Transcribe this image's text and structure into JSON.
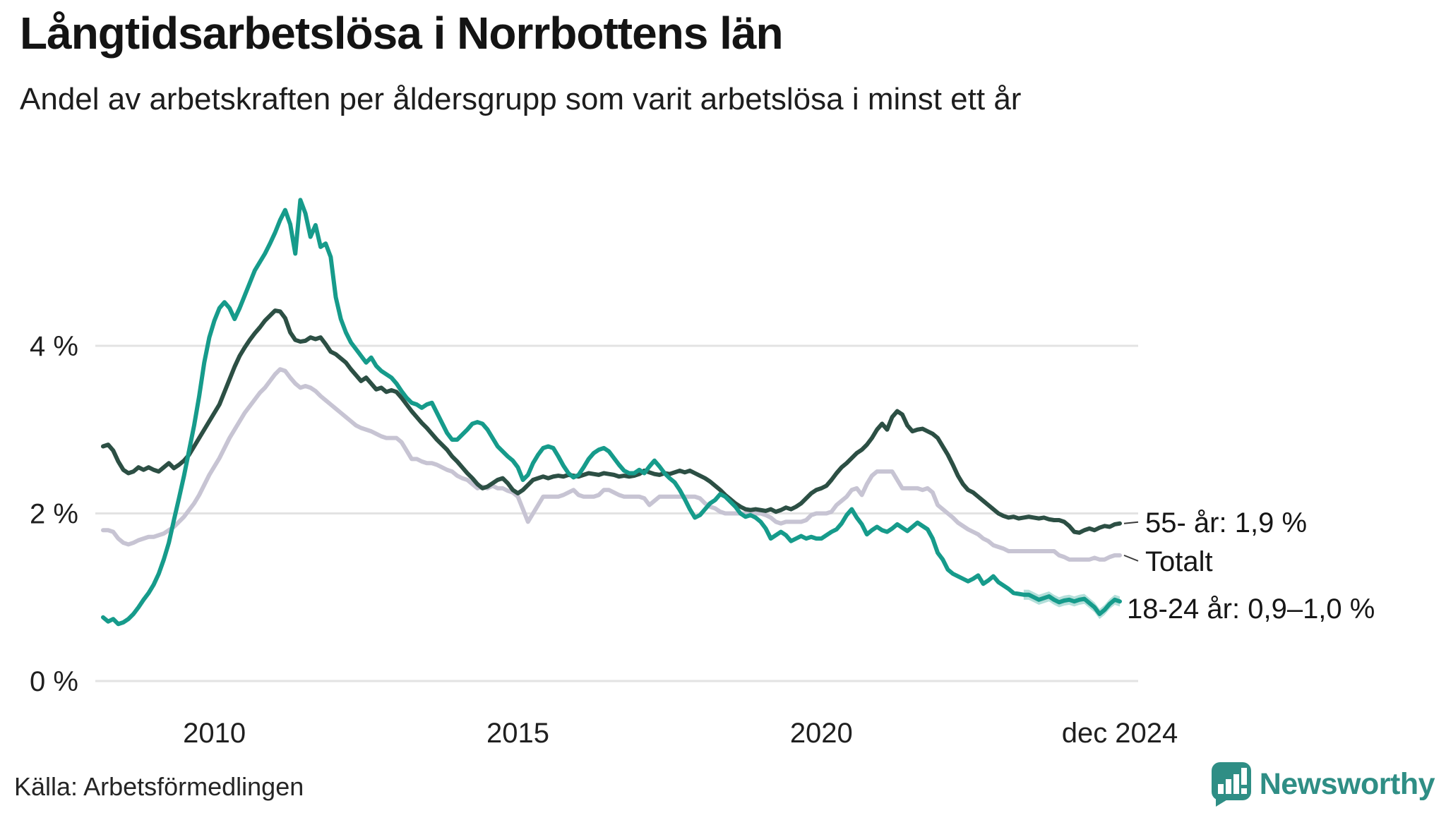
{
  "header": {
    "title": "Långtidsarbetslösa i Norrbottens län",
    "subtitle": "Andel av arbetskraften per åldersgrupp som varit arbetslösa i minst ett år"
  },
  "footer": {
    "source": "Källa: Arbetsförmedlingen",
    "brand": "Newsworthy",
    "brand_color": "#2f8e85"
  },
  "chart_data": {
    "type": "line",
    "title": "Långtidsarbetslösa i Norrbottens län",
    "subtitle": "Andel av arbetskraften per åldersgrupp som varit arbetslösa i minst ett år",
    "unit": "%",
    "x_start_month": "2008-03",
    "x_end_month": "2024-12",
    "x_ticks": [
      {
        "label": "2010",
        "month": "2010-01"
      },
      {
        "label": "2015",
        "month": "2015-01"
      },
      {
        "label": "2020",
        "month": "2020-01"
      },
      {
        "label": "dec 2024",
        "month": "2024-12"
      }
    ],
    "y_ticks": [
      {
        "label": "0 %",
        "value": 0
      },
      {
        "label": "2 %",
        "value": 2
      },
      {
        "label": "4 %",
        "value": 4
      }
    ],
    "ylim": [
      0,
      6.5
    ],
    "grid": true,
    "legend_position": "right-end-labels",
    "grid_color": "#e3e3e3",
    "series": [
      {
        "name": "Totalt",
        "end_label": "Totalt",
        "color": "#c7c4d3",
        "values": [
          1.8,
          1.8,
          1.78,
          1.7,
          1.65,
          1.63,
          1.65,
          1.68,
          1.7,
          1.72,
          1.72,
          1.74,
          1.76,
          1.8,
          1.84,
          1.9,
          1.96,
          2.04,
          2.12,
          2.22,
          2.34,
          2.46,
          2.56,
          2.66,
          2.78,
          2.9,
          3.0,
          3.1,
          3.2,
          3.28,
          3.36,
          3.44,
          3.5,
          3.58,
          3.66,
          3.72,
          3.7,
          3.62,
          3.55,
          3.5,
          3.52,
          3.5,
          3.46,
          3.4,
          3.35,
          3.3,
          3.25,
          3.2,
          3.15,
          3.1,
          3.05,
          3.02,
          3.0,
          2.98,
          2.95,
          2.92,
          2.9,
          2.9,
          2.9,
          2.85,
          2.75,
          2.65,
          2.65,
          2.62,
          2.6,
          2.6,
          2.58,
          2.55,
          2.52,
          2.5,
          2.45,
          2.42,
          2.4,
          2.35,
          2.3,
          2.32,
          2.3,
          2.33,
          2.3,
          2.3,
          2.27,
          2.25,
          2.2,
          2.05,
          1.9,
          2.0,
          2.1,
          2.2,
          2.2,
          2.2,
          2.2,
          2.22,
          2.25,
          2.28,
          2.22,
          2.2,
          2.2,
          2.2,
          2.22,
          2.28,
          2.28,
          2.25,
          2.22,
          2.2,
          2.2,
          2.2,
          2.2,
          2.18,
          2.1,
          2.15,
          2.2,
          2.2,
          2.2,
          2.2,
          2.2,
          2.2,
          2.2,
          2.2,
          2.18,
          2.12,
          2.08,
          2.06,
          2.02,
          2.0,
          2.0,
          2.0,
          2.0,
          2.0,
          2.0,
          2.0,
          2.0,
          1.98,
          1.95,
          1.9,
          1.88,
          1.9,
          1.9,
          1.9,
          1.9,
          1.92,
          1.98,
          2.0,
          2.0,
          2.0,
          2.02,
          2.1,
          2.15,
          2.2,
          2.28,
          2.3,
          2.22,
          2.35,
          2.45,
          2.5,
          2.5,
          2.5,
          2.5,
          2.4,
          2.3,
          2.3,
          2.3,
          2.3,
          2.28,
          2.3,
          2.25,
          2.1,
          2.05,
          2.0,
          1.95,
          1.89,
          1.85,
          1.81,
          1.78,
          1.75,
          1.7,
          1.67,
          1.62,
          1.6,
          1.58,
          1.55,
          1.55,
          1.55,
          1.55,
          1.55,
          1.55,
          1.55,
          1.55,
          1.55,
          1.55,
          1.5,
          1.48,
          1.45,
          1.45,
          1.45,
          1.45,
          1.45,
          1.47,
          1.45,
          1.45,
          1.48,
          1.5,
          1.5
        ]
      },
      {
        "name": "55- år",
        "end_label": "55- år: 1,9 %",
        "end_value_text": "1,9 %",
        "color": "#2c4f44",
        "values": [
          2.8,
          2.82,
          2.75,
          2.62,
          2.52,
          2.48,
          2.5,
          2.55,
          2.52,
          2.55,
          2.52,
          2.5,
          2.55,
          2.6,
          2.54,
          2.58,
          2.63,
          2.7,
          2.8,
          2.9,
          3.0,
          3.1,
          3.2,
          3.3,
          3.45,
          3.6,
          3.75,
          3.88,
          3.98,
          4.07,
          4.15,
          4.22,
          4.3,
          4.36,
          4.42,
          4.41,
          4.33,
          4.16,
          4.07,
          4.05,
          4.06,
          4.1,
          4.08,
          4.1,
          4.02,
          3.93,
          3.9,
          3.85,
          3.8,
          3.72,
          3.65,
          3.58,
          3.62,
          3.55,
          3.48,
          3.5,
          3.45,
          3.47,
          3.45,
          3.38,
          3.3,
          3.22,
          3.15,
          3.08,
          3.02,
          2.95,
          2.88,
          2.82,
          2.76,
          2.68,
          2.62,
          2.55,
          2.48,
          2.42,
          2.35,
          2.3,
          2.32,
          2.36,
          2.4,
          2.42,
          2.36,
          2.28,
          2.24,
          2.28,
          2.34,
          2.4,
          2.42,
          2.44,
          2.42,
          2.44,
          2.45,
          2.44,
          2.46,
          2.45,
          2.44,
          2.46,
          2.48,
          2.47,
          2.46,
          2.48,
          2.47,
          2.46,
          2.44,
          2.45,
          2.44,
          2.45,
          2.47,
          2.51,
          2.49,
          2.47,
          2.46,
          2.48,
          2.47,
          2.49,
          2.51,
          2.49,
          2.51,
          2.48,
          2.45,
          2.42,
          2.38,
          2.33,
          2.28,
          2.22,
          2.17,
          2.12,
          2.08,
          2.05,
          2.04,
          2.05,
          2.04,
          2.03,
          2.05,
          2.02,
          2.04,
          2.07,
          2.05,
          2.08,
          2.12,
          2.18,
          2.24,
          2.28,
          2.3,
          2.33,
          2.4,
          2.48,
          2.55,
          2.6,
          2.66,
          2.72,
          2.76,
          2.82,
          2.9,
          3.0,
          3.07,
          3.0,
          3.15,
          3.22,
          3.18,
          3.05,
          2.98,
          3.0,
          3.01,
          2.98,
          2.95,
          2.9,
          2.8,
          2.7,
          2.58,
          2.45,
          2.35,
          2.28,
          2.25,
          2.2,
          2.15,
          2.1,
          2.05,
          2.0,
          1.97,
          1.95,
          1.96,
          1.94,
          1.95,
          1.96,
          1.95,
          1.94,
          1.95,
          1.93,
          1.92,
          1.92,
          1.9,
          1.85,
          1.78,
          1.77,
          1.8,
          1.82,
          1.8,
          1.83,
          1.85,
          1.84,
          1.87,
          1.88
        ]
      },
      {
        "name": "18-24 år",
        "end_label": "18-24 år: 0,9–1,0 %",
        "end_value_text": "0,9–1,0 %",
        "color": "#169b8b",
        "band": {
          "start": "2023-05",
          "halfwidth": 0.06,
          "opacity": 0.32
        },
        "values": [
          0.76,
          0.71,
          0.74,
          0.68,
          0.7,
          0.74,
          0.8,
          0.88,
          0.97,
          1.05,
          1.15,
          1.28,
          1.45,
          1.65,
          1.92,
          2.18,
          2.45,
          2.75,
          3.05,
          3.4,
          3.8,
          4.1,
          4.3,
          4.45,
          4.52,
          4.45,
          4.32,
          4.45,
          4.6,
          4.75,
          4.9,
          5.0,
          5.1,
          5.22,
          5.35,
          5.5,
          5.62,
          5.45,
          5.1,
          5.74,
          5.58,
          5.3,
          5.44,
          5.18,
          5.22,
          5.06,
          4.58,
          4.32,
          4.16,
          4.04,
          3.96,
          3.88,
          3.8,
          3.86,
          3.76,
          3.7,
          3.66,
          3.62,
          3.55,
          3.46,
          3.38,
          3.32,
          3.3,
          3.26,
          3.3,
          3.32,
          3.2,
          3.08,
          2.96,
          2.88,
          2.88,
          2.94,
          3.0,
          3.07,
          3.09,
          3.07,
          3.0,
          2.9,
          2.8,
          2.74,
          2.68,
          2.63,
          2.55,
          2.4,
          2.46,
          2.6,
          2.7,
          2.78,
          2.8,
          2.78,
          2.68,
          2.57,
          2.48,
          2.43,
          2.46,
          2.55,
          2.65,
          2.72,
          2.76,
          2.78,
          2.74,
          2.66,
          2.58,
          2.51,
          2.48,
          2.48,
          2.52,
          2.48,
          2.56,
          2.63,
          2.56,
          2.48,
          2.42,
          2.37,
          2.28,
          2.17,
          2.05,
          1.95,
          1.98,
          2.05,
          2.12,
          2.16,
          2.23,
          2.2,
          2.14,
          2.08,
          2.0,
          1.96,
          1.98,
          1.95,
          1.9,
          1.82,
          1.7,
          1.74,
          1.78,
          1.74,
          1.67,
          1.7,
          1.73,
          1.7,
          1.72,
          1.7,
          1.7,
          1.74,
          1.78,
          1.81,
          1.88,
          1.98,
          2.05,
          1.95,
          1.87,
          1.75,
          1.8,
          1.84,
          1.8,
          1.78,
          1.82,
          1.87,
          1.83,
          1.79,
          1.84,
          1.89,
          1.85,
          1.81,
          1.7,
          1.53,
          1.45,
          1.33,
          1.28,
          1.25,
          1.22,
          1.19,
          1.22,
          1.26,
          1.16,
          1.2,
          1.25,
          1.18,
          1.14,
          1.1,
          1.05,
          1.04,
          1.03,
          1.03,
          1.0,
          0.97,
          0.99,
          1.01,
          0.97,
          0.94,
          0.96,
          0.97,
          0.95,
          0.97,
          0.98,
          0.93,
          0.88,
          0.8,
          0.85,
          0.92,
          0.97,
          0.95
        ]
      }
    ]
  }
}
